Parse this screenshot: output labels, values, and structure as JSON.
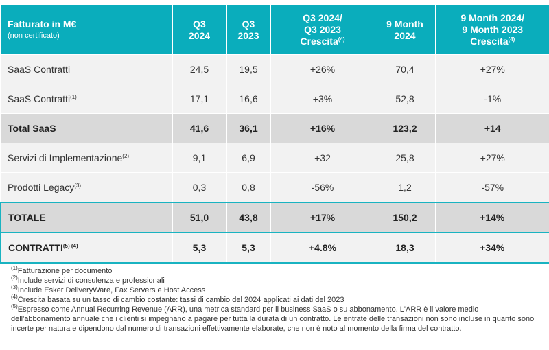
{
  "header": {
    "title": "Fatturato in M€",
    "subtitle": "(non certificato)",
    "columns": [
      {
        "line1": "Q3",
        "line2": "2024"
      },
      {
        "line1": "Q3",
        "line2": "2023"
      },
      {
        "line1": "Q3 2024/",
        "line2": "Q3 2023",
        "line3": "Crescita",
        "sup": "(4)"
      },
      {
        "line1": "9 Month",
        "line2": "2024"
      },
      {
        "line1": "9 Month 2024/",
        "line2": "9 Month 2023",
        "line3": "Crescita",
        "sup": "(4)"
      }
    ]
  },
  "rows": [
    {
      "label": "SaaS Contratti",
      "sup": "",
      "values": [
        "24,5",
        "19,5",
        "+26%",
        "70,4",
        "+27%"
      ]
    },
    {
      "label": "SaaS Contratti",
      "sup": "(1)",
      "values": [
        "17,1",
        "16,6",
        "+3%",
        "52,8",
        "-1%"
      ]
    },
    {
      "label": "Total SaaS",
      "sup": "",
      "values": [
        "41,6",
        "36,1",
        "+16%",
        "123,2",
        "+14"
      ]
    },
    {
      "label": "Servizi di Implementazione",
      "sup": "(2)",
      "values": [
        "9,1",
        "6,9",
        "+32",
        "25,8",
        "+27%"
      ]
    },
    {
      "label": "Prodotti Legacy",
      "sup": "(3)",
      "values": [
        "0,3",
        "0,8",
        "-56%",
        "1,2",
        "-57%"
      ]
    },
    {
      "label": "TOTALE",
      "sup": "",
      "values": [
        "51,0",
        "43,8",
        "+17%",
        "150,2",
        "+14%"
      ]
    },
    {
      "label": "CONTRATTI",
      "sup": "(5) (4)",
      "values": [
        "5,3",
        "5,3",
        "+4.8%",
        "18,3",
        "+34%"
      ]
    }
  ],
  "footnotes": [
    {
      "mark": "(1)",
      "text": "Fatturazione per documento"
    },
    {
      "mark": "(2)",
      "text": "Include servizi di consulenza e professionali"
    },
    {
      "mark": "(3)",
      "text": "Include Esker DeliveryWare, Fax Servers e Host Access"
    },
    {
      "mark": "(4)",
      "text": "Crescita basata su un tasso di cambio costante: tassi di cambio del 2024 applicati ai dati del 2023"
    },
    {
      "mark": "(5)",
      "text": "Espresso come Annual Recurring Revenue (ARR), una metrica standard per il business SaaS o su abbonamento. L'ARR è il valore medio dell'abbonamento annuale che i clienti si impegnano a pagare per tutta la durata di un contratto. Le entrate delle transazioni non sono incluse in quanto sono incerte per natura e dipendono dal numero di transazioni effettivamente elaborate, che non è noto al momento della firma del contratto."
    }
  ],
  "colors": {
    "header": "#0aadbc",
    "row": "#f2f2f2",
    "total_row": "#d9d9d9",
    "highlight_border": "#19b3c1"
  }
}
